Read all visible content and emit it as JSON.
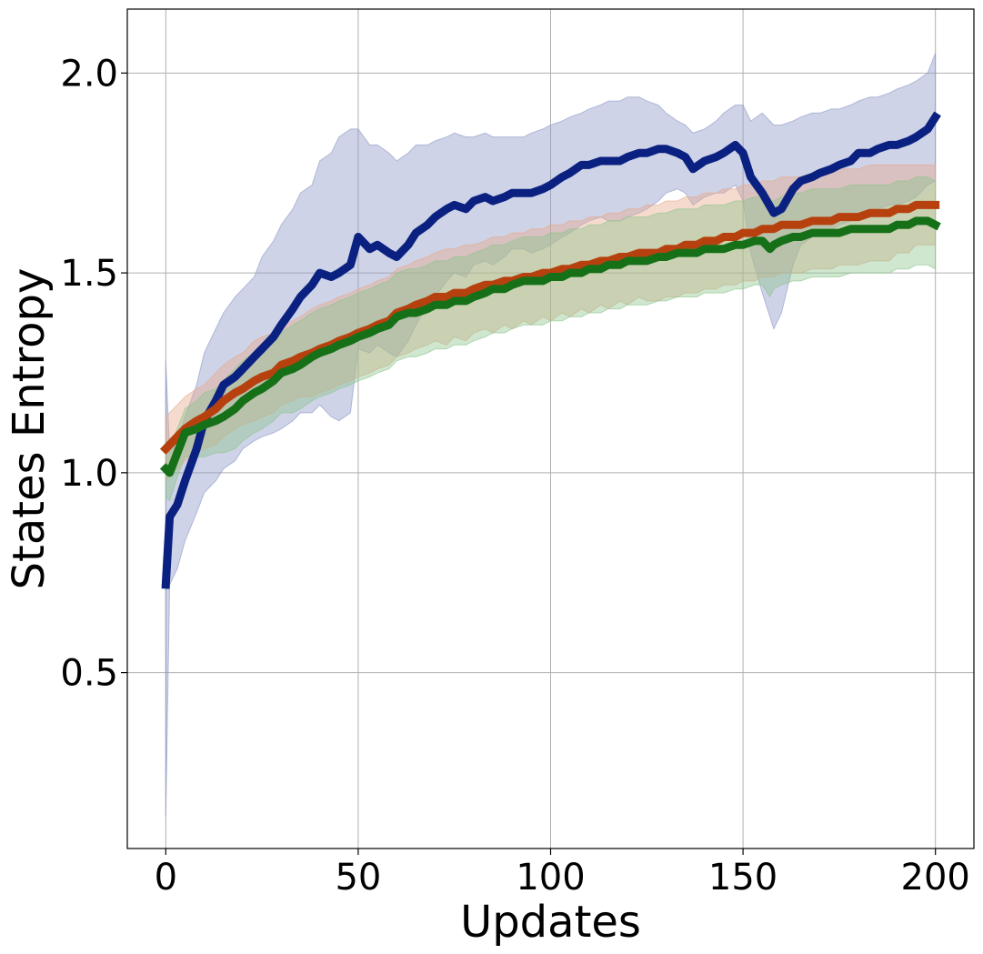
{
  "chart_data": {
    "type": "line",
    "xlabel": "Updates",
    "ylabel": "States Entropy",
    "xlim": [
      -10,
      210
    ],
    "ylim": [
      0.06,
      2.16
    ],
    "xticks": [
      0,
      50,
      100,
      150,
      200
    ],
    "xtick_labels": [
      "0",
      "50",
      "100",
      "150",
      "200"
    ],
    "yticks": [
      0.5,
      1.0,
      1.5,
      2.0
    ],
    "ytick_labels": [
      "0.5",
      "1.0",
      "1.5",
      "2.0"
    ],
    "grid": true,
    "legend": "none",
    "series": [
      {
        "color": "#0a2181",
        "band_color": "#8a97c6",
        "x": [
          0,
          1,
          3,
          5,
          8,
          10,
          13,
          15,
          18,
          20,
          23,
          25,
          28,
          30,
          33,
          35,
          38,
          40,
          43,
          45,
          48,
          50,
          53,
          55,
          58,
          60,
          63,
          65,
          68,
          70,
          73,
          75,
          78,
          80,
          83,
          85,
          88,
          90,
          93,
          95,
          98,
          100,
          103,
          105,
          108,
          110,
          113,
          115,
          118,
          120,
          123,
          125,
          128,
          130,
          133,
          135,
          137,
          140,
          143,
          145,
          148,
          150,
          152,
          155,
          158,
          160,
          163,
          165,
          168,
          170,
          173,
          175,
          178,
          180,
          183,
          185,
          188,
          190,
          193,
          195,
          198,
          200
        ],
        "mean": [
          0.72,
          0.89,
          0.92,
          0.98,
          1.06,
          1.13,
          1.18,
          1.22,
          1.24,
          1.26,
          1.29,
          1.31,
          1.34,
          1.37,
          1.41,
          1.44,
          1.47,
          1.5,
          1.49,
          1.5,
          1.52,
          1.59,
          1.56,
          1.57,
          1.55,
          1.54,
          1.57,
          1.6,
          1.62,
          1.64,
          1.66,
          1.67,
          1.66,
          1.68,
          1.69,
          1.68,
          1.69,
          1.7,
          1.7,
          1.7,
          1.71,
          1.72,
          1.74,
          1.75,
          1.77,
          1.77,
          1.78,
          1.78,
          1.78,
          1.79,
          1.8,
          1.8,
          1.81,
          1.81,
          1.8,
          1.79,
          1.76,
          1.78,
          1.79,
          1.8,
          1.82,
          1.8,
          1.74,
          1.7,
          1.65,
          1.66,
          1.71,
          1.73,
          1.74,
          1.75,
          1.76,
          1.77,
          1.78,
          1.8,
          1.8,
          1.81,
          1.82,
          1.82,
          1.83,
          1.84,
          1.86,
          1.89
        ],
        "upper": [
          1.28,
          1.05,
          1.08,
          1.14,
          1.22,
          1.3,
          1.36,
          1.4,
          1.44,
          1.46,
          1.49,
          1.54,
          1.58,
          1.62,
          1.66,
          1.7,
          1.72,
          1.78,
          1.8,
          1.84,
          1.86,
          1.86,
          1.82,
          1.82,
          1.8,
          1.78,
          1.8,
          1.82,
          1.82,
          1.83,
          1.84,
          1.85,
          1.84,
          1.84,
          1.85,
          1.84,
          1.84,
          1.84,
          1.84,
          1.85,
          1.86,
          1.87,
          1.88,
          1.89,
          1.9,
          1.91,
          1.92,
          1.93,
          1.93,
          1.94,
          1.94,
          1.93,
          1.92,
          1.9,
          1.88,
          1.87,
          1.85,
          1.86,
          1.88,
          1.9,
          1.92,
          1.92,
          1.88,
          1.9,
          1.87,
          1.87,
          1.88,
          1.89,
          1.9,
          1.9,
          1.91,
          1.91,
          1.92,
          1.93,
          1.94,
          1.94,
          1.95,
          1.96,
          1.97,
          1.98,
          2.0,
          2.05
        ],
        "lower": [
          0.14,
          0.72,
          0.76,
          0.83,
          0.9,
          0.95,
          0.98,
          1.01,
          1.03,
          1.06,
          1.08,
          1.09,
          1.1,
          1.11,
          1.13,
          1.15,
          1.15,
          1.17,
          1.14,
          1.13,
          1.15,
          1.31,
          1.3,
          1.32,
          1.3,
          1.29,
          1.33,
          1.37,
          1.42,
          1.44,
          1.48,
          1.5,
          1.49,
          1.52,
          1.53,
          1.52,
          1.54,
          1.56,
          1.56,
          1.55,
          1.56,
          1.57,
          1.59,
          1.6,
          1.62,
          1.63,
          1.64,
          1.63,
          1.63,
          1.64,
          1.65,
          1.66,
          1.68,
          1.7,
          1.71,
          1.7,
          1.67,
          1.69,
          1.7,
          1.7,
          1.72,
          1.68,
          1.55,
          1.45,
          1.36,
          1.4,
          1.52,
          1.57,
          1.59,
          1.6,
          1.61,
          1.62,
          1.63,
          1.65,
          1.65,
          1.66,
          1.67,
          1.67,
          1.68,
          1.69,
          1.72,
          1.73
        ]
      },
      {
        "color": "#b7410e",
        "band_color": "#e8a98a",
        "x": [
          0,
          3,
          5,
          8,
          10,
          13,
          15,
          18,
          20,
          23,
          25,
          28,
          30,
          33,
          35,
          38,
          40,
          43,
          45,
          48,
          50,
          53,
          55,
          58,
          60,
          63,
          65,
          68,
          70,
          73,
          75,
          78,
          80,
          83,
          85,
          88,
          90,
          93,
          95,
          98,
          100,
          103,
          105,
          108,
          110,
          113,
          115,
          118,
          120,
          123,
          125,
          128,
          130,
          133,
          135,
          138,
          140,
          143,
          145,
          148,
          150,
          153,
          155,
          158,
          160,
          163,
          165,
          168,
          170,
          173,
          175,
          178,
          180,
          183,
          185,
          188,
          190,
          193,
          195,
          198,
          200
        ],
        "mean": [
          1.06,
          1.09,
          1.11,
          1.13,
          1.14,
          1.16,
          1.18,
          1.2,
          1.21,
          1.23,
          1.24,
          1.25,
          1.27,
          1.28,
          1.29,
          1.3,
          1.31,
          1.32,
          1.33,
          1.34,
          1.35,
          1.36,
          1.37,
          1.38,
          1.4,
          1.41,
          1.42,
          1.43,
          1.44,
          1.44,
          1.45,
          1.45,
          1.46,
          1.47,
          1.47,
          1.48,
          1.48,
          1.49,
          1.49,
          1.5,
          1.5,
          1.51,
          1.51,
          1.52,
          1.52,
          1.53,
          1.53,
          1.54,
          1.54,
          1.55,
          1.55,
          1.55,
          1.56,
          1.56,
          1.57,
          1.57,
          1.58,
          1.58,
          1.59,
          1.59,
          1.6,
          1.6,
          1.61,
          1.61,
          1.62,
          1.62,
          1.62,
          1.63,
          1.63,
          1.63,
          1.64,
          1.64,
          1.64,
          1.65,
          1.65,
          1.65,
          1.66,
          1.66,
          1.67,
          1.67,
          1.67
        ],
        "upper": [
          1.14,
          1.17,
          1.19,
          1.21,
          1.22,
          1.25,
          1.27,
          1.29,
          1.3,
          1.33,
          1.34,
          1.35,
          1.37,
          1.38,
          1.39,
          1.41,
          1.42,
          1.43,
          1.44,
          1.45,
          1.46,
          1.47,
          1.48,
          1.49,
          1.51,
          1.52,
          1.53,
          1.54,
          1.55,
          1.56,
          1.56,
          1.57,
          1.57,
          1.58,
          1.59,
          1.59,
          1.6,
          1.6,
          1.61,
          1.61,
          1.62,
          1.62,
          1.63,
          1.63,
          1.64,
          1.64,
          1.65,
          1.65,
          1.66,
          1.66,
          1.67,
          1.67,
          1.68,
          1.68,
          1.69,
          1.69,
          1.7,
          1.7,
          1.71,
          1.71,
          1.72,
          1.72,
          1.73,
          1.73,
          1.74,
          1.74,
          1.74,
          1.75,
          1.75,
          1.75,
          1.76,
          1.76,
          1.76,
          1.77,
          1.77,
          1.77,
          1.77,
          1.77,
          1.77,
          1.77,
          1.77
        ],
        "lower": [
          0.98,
          1.01,
          1.03,
          1.05,
          1.06,
          1.07,
          1.09,
          1.11,
          1.12,
          1.13,
          1.14,
          1.15,
          1.17,
          1.18,
          1.19,
          1.19,
          1.2,
          1.21,
          1.22,
          1.23,
          1.24,
          1.25,
          1.26,
          1.27,
          1.29,
          1.3,
          1.31,
          1.32,
          1.33,
          1.32,
          1.34,
          1.33,
          1.35,
          1.36,
          1.35,
          1.37,
          1.36,
          1.38,
          1.37,
          1.39,
          1.38,
          1.4,
          1.39,
          1.41,
          1.4,
          1.42,
          1.41,
          1.43,
          1.42,
          1.44,
          1.43,
          1.43,
          1.44,
          1.44,
          1.45,
          1.45,
          1.46,
          1.46,
          1.47,
          1.47,
          1.48,
          1.48,
          1.49,
          1.49,
          1.5,
          1.5,
          1.5,
          1.51,
          1.51,
          1.51,
          1.52,
          1.52,
          1.52,
          1.53,
          1.53,
          1.53,
          1.55,
          1.55,
          1.57,
          1.57,
          1.57
        ]
      },
      {
        "color": "#157018",
        "band_color": "#8cc48c",
        "x": [
          0,
          1,
          3,
          5,
          8,
          10,
          13,
          15,
          18,
          20,
          23,
          25,
          28,
          30,
          33,
          35,
          38,
          40,
          43,
          45,
          48,
          50,
          53,
          55,
          58,
          60,
          63,
          65,
          68,
          70,
          73,
          75,
          78,
          80,
          83,
          85,
          88,
          90,
          93,
          95,
          98,
          100,
          103,
          105,
          108,
          110,
          113,
          115,
          118,
          120,
          123,
          125,
          128,
          130,
          133,
          135,
          138,
          140,
          143,
          145,
          148,
          150,
          153,
          155,
          157,
          158,
          160,
          163,
          165,
          168,
          170,
          173,
          175,
          178,
          180,
          183,
          185,
          188,
          190,
          193,
          195,
          198,
          200
        ],
        "mean": [
          1.01,
          1.0,
          1.05,
          1.1,
          1.11,
          1.12,
          1.13,
          1.14,
          1.16,
          1.18,
          1.2,
          1.21,
          1.23,
          1.25,
          1.26,
          1.27,
          1.29,
          1.3,
          1.31,
          1.32,
          1.33,
          1.34,
          1.35,
          1.36,
          1.37,
          1.39,
          1.4,
          1.4,
          1.41,
          1.42,
          1.42,
          1.43,
          1.43,
          1.44,
          1.45,
          1.46,
          1.46,
          1.47,
          1.48,
          1.48,
          1.48,
          1.49,
          1.49,
          1.5,
          1.5,
          1.51,
          1.51,
          1.52,
          1.52,
          1.53,
          1.53,
          1.53,
          1.54,
          1.54,
          1.55,
          1.55,
          1.55,
          1.56,
          1.56,
          1.56,
          1.57,
          1.57,
          1.58,
          1.58,
          1.56,
          1.57,
          1.58,
          1.59,
          1.59,
          1.6,
          1.6,
          1.6,
          1.6,
          1.61,
          1.61,
          1.61,
          1.61,
          1.61,
          1.62,
          1.62,
          1.63,
          1.63,
          1.62
        ],
        "upper": [
          1.08,
          1.07,
          1.11,
          1.16,
          1.18,
          1.2,
          1.21,
          1.23,
          1.26,
          1.28,
          1.3,
          1.31,
          1.33,
          1.35,
          1.37,
          1.38,
          1.4,
          1.41,
          1.42,
          1.43,
          1.44,
          1.45,
          1.46,
          1.47,
          1.48,
          1.5,
          1.51,
          1.51,
          1.52,
          1.53,
          1.53,
          1.54,
          1.54,
          1.55,
          1.56,
          1.57,
          1.57,
          1.58,
          1.59,
          1.59,
          1.59,
          1.6,
          1.6,
          1.61,
          1.61,
          1.62,
          1.62,
          1.63,
          1.63,
          1.64,
          1.64,
          1.64,
          1.65,
          1.65,
          1.66,
          1.66,
          1.66,
          1.67,
          1.67,
          1.67,
          1.68,
          1.68,
          1.69,
          1.69,
          1.68,
          1.68,
          1.69,
          1.7,
          1.7,
          1.71,
          1.71,
          1.71,
          1.71,
          1.72,
          1.72,
          1.72,
          1.72,
          1.72,
          1.73,
          1.73,
          1.74,
          1.74,
          1.73
        ],
        "lower": [
          0.94,
          0.93,
          0.99,
          1.04,
          1.04,
          1.04,
          1.05,
          1.05,
          1.06,
          1.08,
          1.1,
          1.11,
          1.13,
          1.15,
          1.15,
          1.16,
          1.18,
          1.19,
          1.2,
          1.21,
          1.22,
          1.23,
          1.24,
          1.25,
          1.26,
          1.28,
          1.29,
          1.29,
          1.3,
          1.31,
          1.31,
          1.32,
          1.32,
          1.33,
          1.34,
          1.35,
          1.35,
          1.36,
          1.37,
          1.37,
          1.37,
          1.38,
          1.38,
          1.39,
          1.39,
          1.4,
          1.4,
          1.41,
          1.41,
          1.42,
          1.42,
          1.42,
          1.43,
          1.43,
          1.44,
          1.44,
          1.44,
          1.45,
          1.45,
          1.45,
          1.46,
          1.46,
          1.47,
          1.47,
          1.44,
          1.46,
          1.47,
          1.48,
          1.48,
          1.49,
          1.49,
          1.49,
          1.49,
          1.5,
          1.5,
          1.5,
          1.5,
          1.5,
          1.51,
          1.51,
          1.52,
          1.52,
          1.51
        ]
      }
    ]
  }
}
